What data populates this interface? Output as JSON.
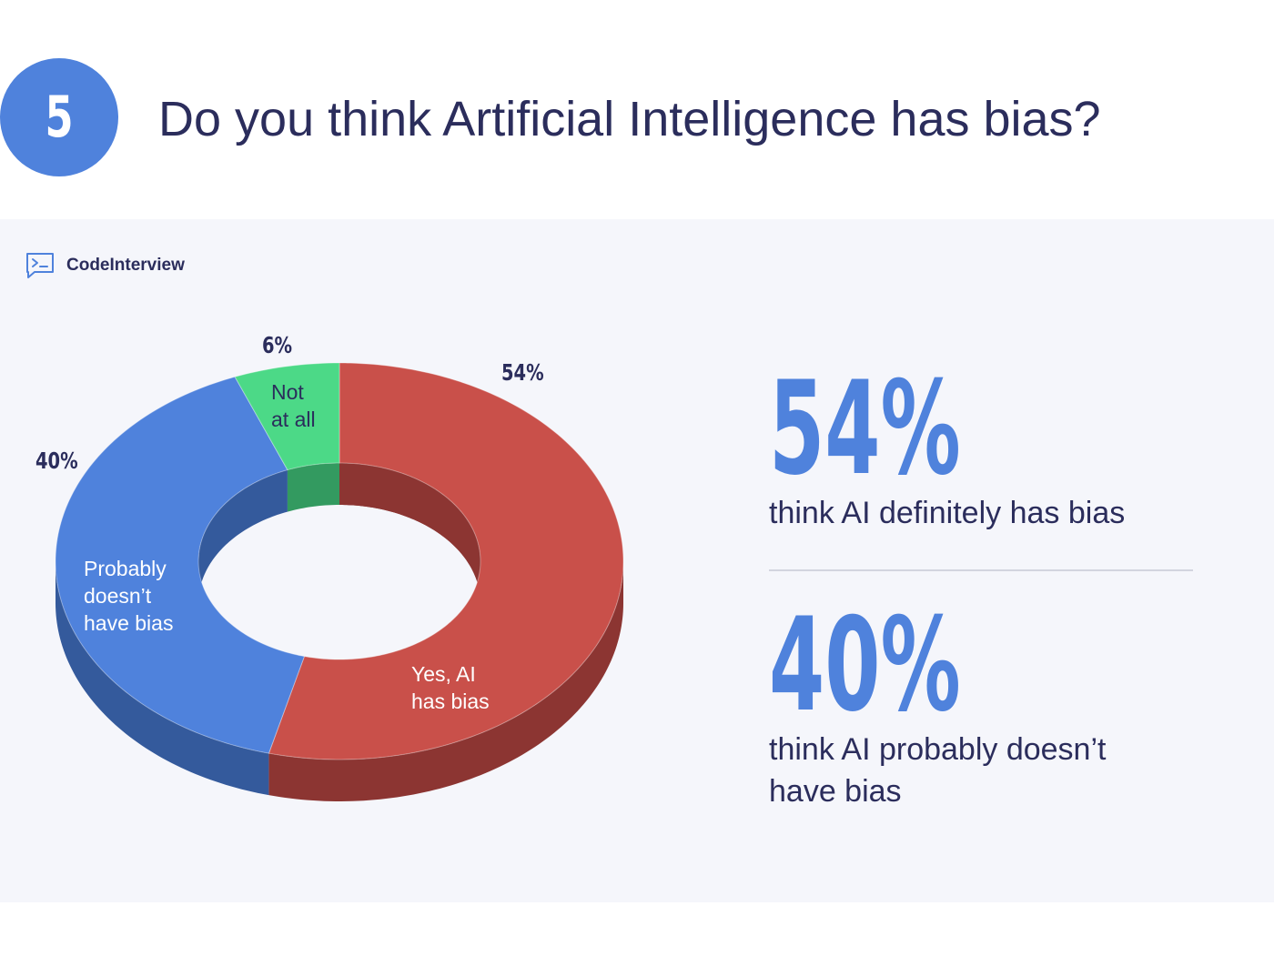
{
  "header": {
    "question_number": "5",
    "title": "Do you think Artificial Intelligence has bias?"
  },
  "brand": {
    "name": "CodeInterview",
    "icon": "terminal-chat-icon"
  },
  "colors": {
    "accent": "#4f82dc",
    "text": "#2b2d5c",
    "panel_background": "#f5f6fb"
  },
  "chart_data": {
    "type": "pie",
    "style": "3d-donut",
    "title": "",
    "slices": [
      {
        "label": "Yes, AI has bias",
        "lines": [
          "Yes, AI",
          "has bias"
        ],
        "value": 54,
        "display": "54%",
        "color": "#c9504a",
        "depth_color": "#8c3532"
      },
      {
        "label": "Probably doesn’t have bias",
        "lines": [
          "Probably",
          "doesn’t",
          "have bias"
        ],
        "value": 40,
        "display": "40%",
        "color": "#4f82dc",
        "depth_color": "#345a9c"
      },
      {
        "label": "Not at all",
        "lines": [
          "Not",
          "at all"
        ],
        "value": 6,
        "display": "6%",
        "color": "#4cd987",
        "depth_color": "#339a60"
      }
    ]
  },
  "stats": [
    {
      "value": "54%",
      "caption_lines": [
        "think AI definitely has bias"
      ]
    },
    {
      "value": "40%",
      "caption_lines": [
        "think AI probably doesn’t",
        "have bias"
      ]
    }
  ]
}
